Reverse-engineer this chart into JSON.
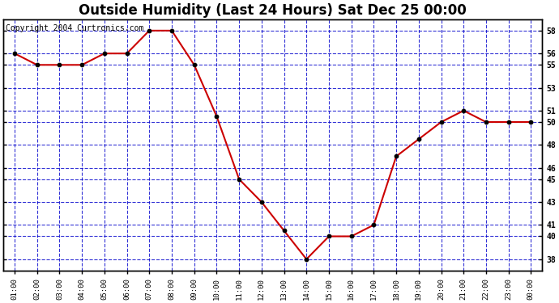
{
  "title": "Outside Humidity (Last 24 Hours) Sat Dec 25 00:00",
  "copyright": "Copyright 2004 Curtronics.com",
  "x_labels": [
    "01:00",
    "02:00",
    "03:00",
    "04:00",
    "05:00",
    "06:00",
    "07:00",
    "08:00",
    "09:00",
    "10:00",
    "11:00",
    "12:00",
    "13:00",
    "14:00",
    "15:00",
    "16:00",
    "17:00",
    "18:00",
    "19:00",
    "20:00",
    "21:00",
    "22:00",
    "23:00",
    "00:00"
  ],
  "y_values": [
    56,
    55,
    55,
    55,
    56,
    56,
    58,
    58,
    55,
    50.5,
    45,
    43,
    40.5,
    38,
    40,
    40,
    41,
    47,
    48.5,
    50,
    51,
    50,
    50,
    50
  ],
  "ylim": [
    37,
    59
  ],
  "yticks": [
    38,
    40,
    41,
    43,
    45,
    46,
    48,
    50,
    51,
    53,
    55,
    56,
    58
  ],
  "line_color": "#cc0000",
  "marker_color": "#000000",
  "bg_color": "#ffffff",
  "plot_bg_color": "#ffffff",
  "grid_color": "#0000cc",
  "border_color": "#000000",
  "title_fontsize": 12,
  "copyright_fontsize": 7
}
